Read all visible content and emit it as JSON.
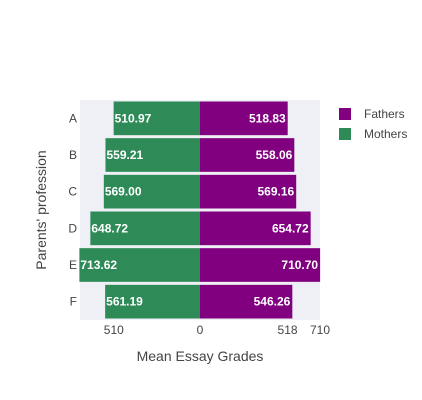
{
  "chart_data": {
    "type": "bar",
    "orientation": "horizontal",
    "layout": "back-to-back",
    "xlabel": "Mean Essay Grades",
    "ylabel": "Parents' profession",
    "categories": [
      "A",
      "B",
      "C",
      "D",
      "E",
      "F"
    ],
    "series": [
      {
        "name": "Fathers",
        "side": "right",
        "color": "#800080",
        "values": [
          518.83,
          558.06,
          569.16,
          654.72,
          710.7,
          546.26
        ],
        "labels": [
          "518.83",
          "558.06",
          "569.16",
          "654.72",
          "710.70",
          "546.26"
        ]
      },
      {
        "name": "Mothers",
        "side": "left",
        "color": "#2e8b57",
        "values": [
          510.97,
          559.21,
          569.0,
          648.72,
          713.62,
          561.19
        ],
        "labels": [
          "510.97",
          "559.21",
          "569.00",
          "648.72",
          "713.62",
          "561.19"
        ]
      }
    ],
    "x_ticks": [
      {
        "value": -510,
        "label": "510"
      },
      {
        "value": 0,
        "label": "0"
      },
      {
        "value": 518,
        "label": "518"
      },
      {
        "value": 710,
        "label": "710"
      }
    ],
    "xlim": [
      -710,
      710
    ],
    "plot_background": "#eef0f5",
    "legend_position": "top-right"
  }
}
